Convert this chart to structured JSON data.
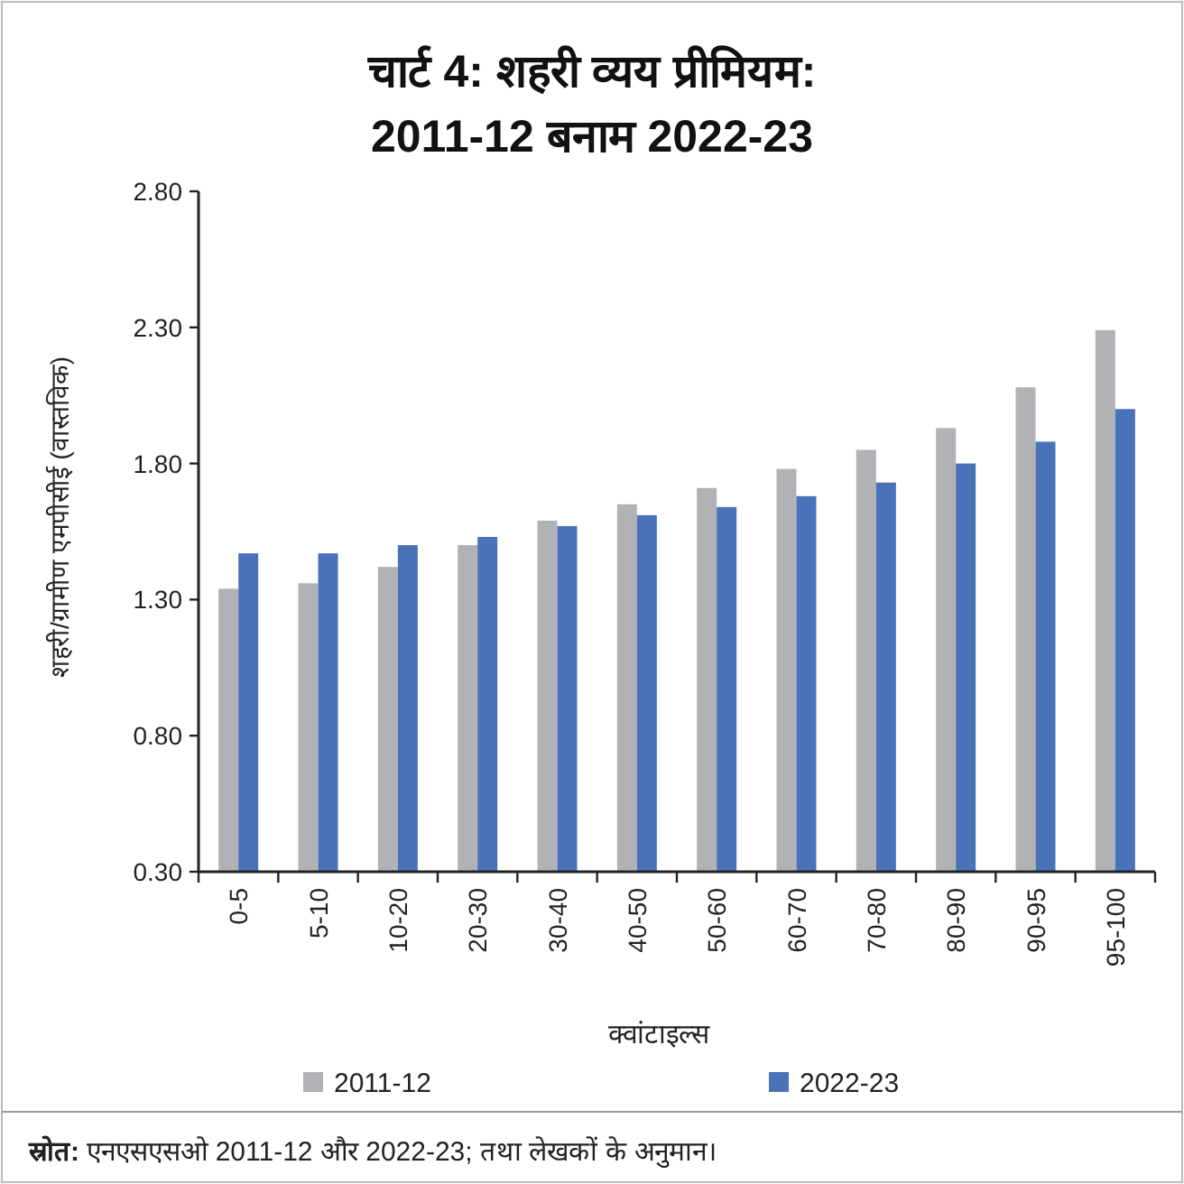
{
  "chart_data": {
    "type": "bar",
    "title": "चार्ट 4: शहरी व्यय प्रीमियम:\n2011-12 बनाम 2022-23",
    "xlabel": "क्वांटाइल्स",
    "ylabel": "शहरी/ग्रामीण एमपीसीई (वास्तविक)",
    "categories": [
      "0-5",
      "5-10",
      "10-20",
      "20-30",
      "30-40",
      "40-50",
      "50-60",
      "60-70",
      "70-80",
      "80-90",
      "90-95",
      "95-100"
    ],
    "series": [
      {
        "name": "2011-12",
        "color": "#b1b2b6",
        "values": [
          1.34,
          1.36,
          1.42,
          1.5,
          1.59,
          1.65,
          1.71,
          1.78,
          1.85,
          1.93,
          2.08,
          2.29
        ]
      },
      {
        "name": "2022-23",
        "color": "#4a72b8",
        "values": [
          1.47,
          1.47,
          1.5,
          1.53,
          1.57,
          1.61,
          1.64,
          1.68,
          1.73,
          1.8,
          1.88,
          2.0
        ]
      }
    ],
    "ylim": [
      0.3,
      2.8
    ],
    "yticks": [
      {
        "value": 0.3,
        "label": "0.30"
      },
      {
        "value": 0.8,
        "label": "0.80"
      },
      {
        "value": 1.3,
        "label": "1.30"
      },
      {
        "value": 1.8,
        "label": "1.80"
      },
      {
        "value": 2.3,
        "label": "2.30"
      },
      {
        "value": 2.8,
        "label": "2.80"
      }
    ],
    "grid": false,
    "legend": "bottom",
    "annotations": [
      "स्रोत: एनएसएसओ 2011-12 और 2022-23; तथा लेखकों के अनुमान।"
    ]
  }
}
